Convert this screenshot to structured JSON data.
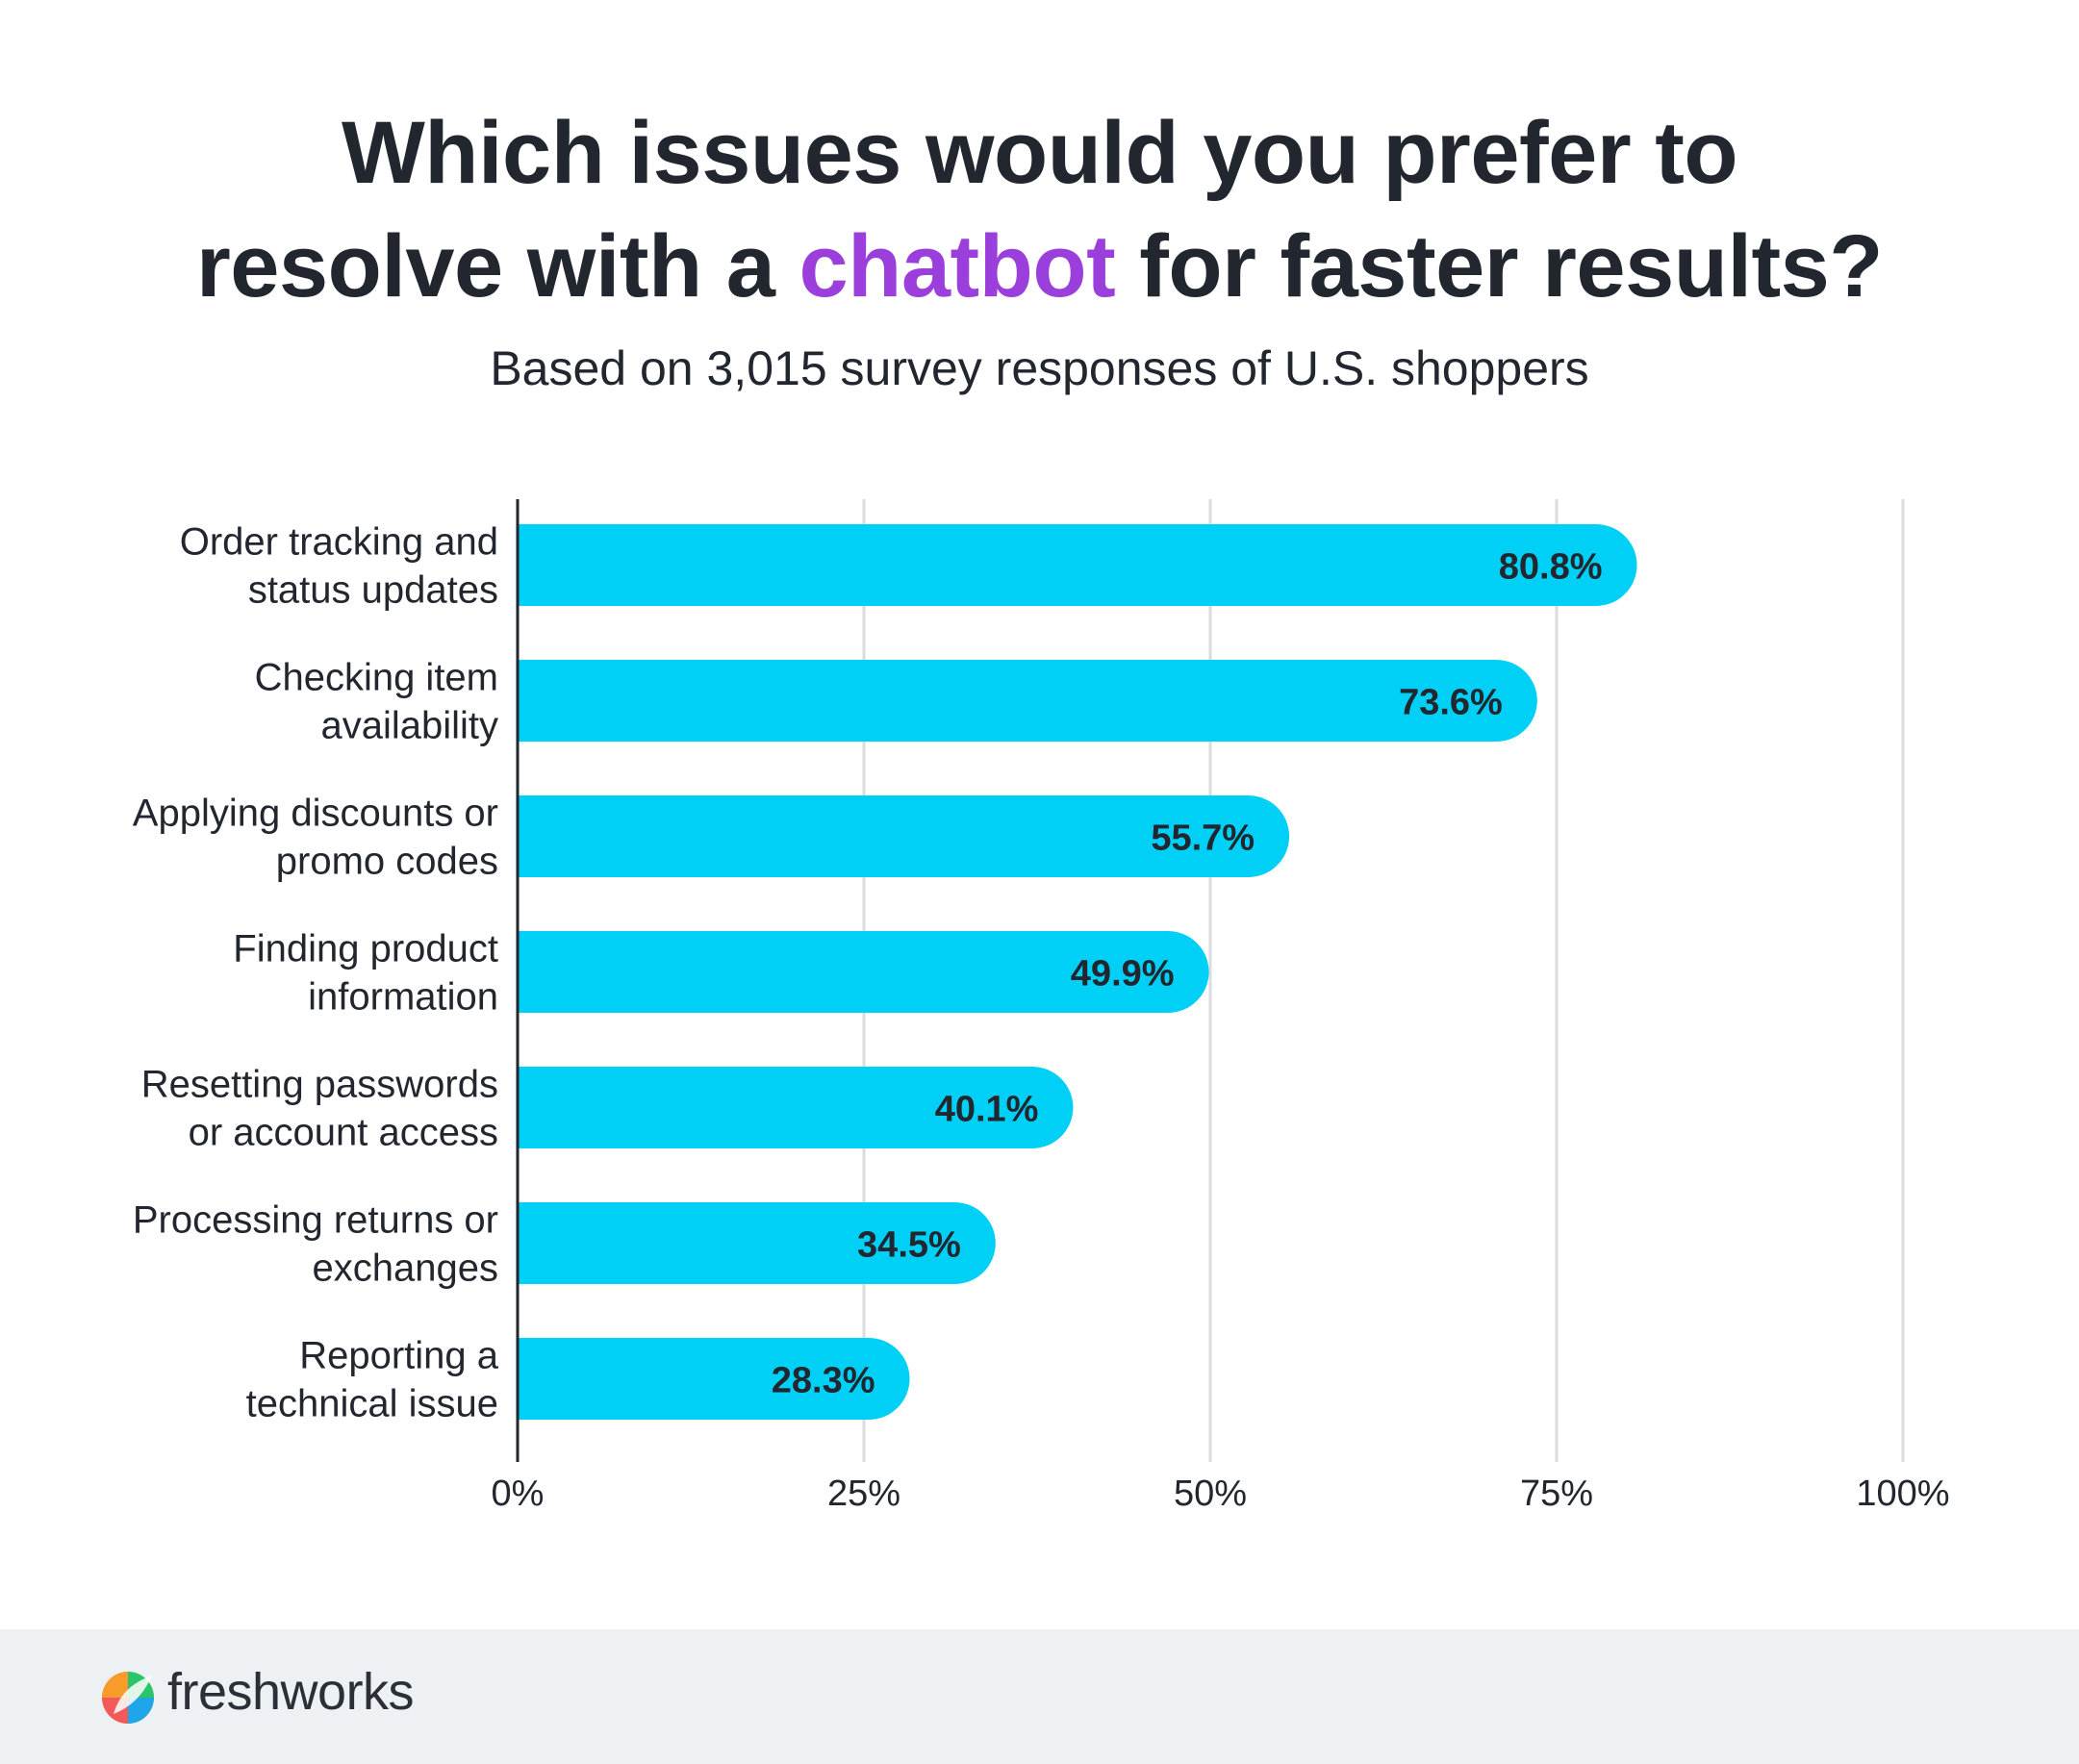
{
  "header": {
    "title_line1": "Which issues would you prefer to",
    "title_line2_pre": "resolve with a ",
    "title_line2_accent": "chatbot",
    "title_line2_post": " for faster results?",
    "subtitle": "Based on 3,015 survey responses of U.S. shoppers"
  },
  "colors": {
    "bar": "#00cff6",
    "accent": "#9b3fdc",
    "text": "#22262e",
    "grid": "#d9dcdf",
    "footer_bg": "#eef1f4"
  },
  "chart_data": {
    "type": "bar",
    "orientation": "horizontal",
    "categories": [
      [
        "Order tracking and",
        "status updates"
      ],
      [
        "Checking item",
        "availability"
      ],
      [
        "Applying discounts or",
        "promo codes"
      ],
      [
        "Finding product",
        "information"
      ],
      [
        "Resetting passwords",
        "or account access"
      ],
      [
        "Processing returns or",
        "exchanges"
      ],
      [
        "Reporting a",
        "technical issue"
      ]
    ],
    "values": [
      80.8,
      73.6,
      55.7,
      49.9,
      40.1,
      34.5,
      28.3
    ],
    "value_labels": [
      "80.8%",
      "73.6%",
      "55.7%",
      "49.9%",
      "40.1%",
      "34.5%",
      "28.3%"
    ],
    "xlim": [
      0,
      100
    ],
    "x_ticks": [
      0,
      25,
      50,
      75,
      100
    ],
    "x_tick_labels": [
      "0%",
      "25%",
      "50%",
      "75%",
      "100%"
    ],
    "grid": true
  },
  "footer": {
    "brand": "freshworks",
    "logo_icon": "freshworks-logo-icon"
  }
}
